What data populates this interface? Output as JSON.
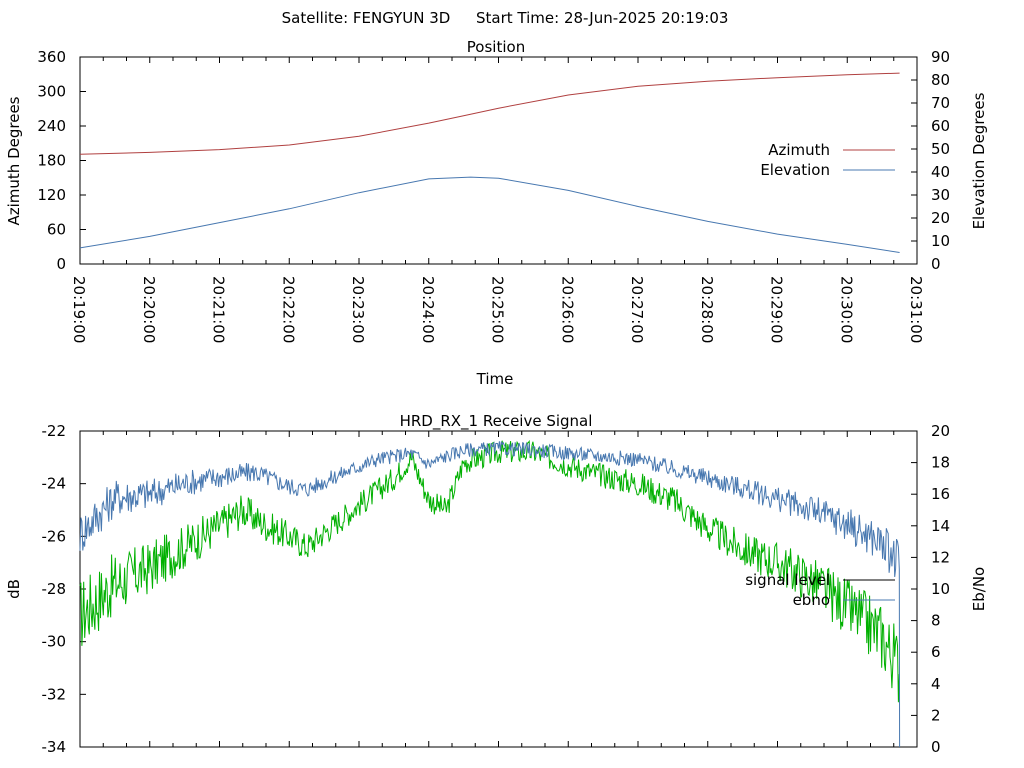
{
  "header": {
    "satellite": "Satellite: FENGYUN 3D",
    "start_time": "Start Time: 28-Jun-2025 20:19:03"
  },
  "chart_data": [
    {
      "type": "line",
      "title": "Position",
      "xlabel": "Time",
      "ylabel": "Azimuth Degrees",
      "y2label": "Elevation Degrees",
      "xticks": [
        "20:19:00",
        "20:20:00",
        "20:21:00",
        "20:22:00",
        "20:23:00",
        "20:24:00",
        "20:25:00",
        "20:26:00",
        "20:27:00",
        "20:28:00",
        "20:29:00",
        "20:30:00",
        "20:31:00"
      ],
      "ylim": [
        0,
        360
      ],
      "yticks": [
        "0",
        "60",
        "120",
        "180",
        "240",
        "300",
        "360"
      ],
      "y2lim": [
        0,
        90
      ],
      "y2ticks": [
        "0",
        "10",
        "20",
        "30",
        "40",
        "50",
        "60",
        "70",
        "80",
        "90"
      ],
      "legend_position": "right",
      "series": [
        {
          "name": "Azimuth",
          "axis": "left",
          "color": "#b04040",
          "x": [
            "20:19:00",
            "20:20:00",
            "20:21:00",
            "20:22:00",
            "20:23:00",
            "20:24:00",
            "20:24:30",
            "20:25:00",
            "20:26:00",
            "20:27:00",
            "20:28:00",
            "20:29:00",
            "20:30:00",
            "20:30:45"
          ],
          "values": [
            191,
            194,
            199,
            207,
            222,
            245,
            258,
            271,
            294,
            309,
            318,
            324,
            329,
            332
          ]
        },
        {
          "name": "Elevation",
          "axis": "right",
          "color": "#4878b0",
          "x": [
            "20:19:00",
            "20:20:00",
            "20:21:00",
            "20:22:00",
            "20:23:00",
            "20:24:00",
            "20:24:36",
            "20:25:00",
            "20:26:00",
            "20:27:00",
            "20:28:00",
            "20:29:00",
            "20:30:00",
            "20:30:45"
          ],
          "values": [
            7,
            12,
            18,
            24,
            31,
            37,
            37.8,
            37.3,
            32,
            25,
            18.5,
            13,
            8.5,
            5
          ]
        }
      ]
    },
    {
      "type": "line",
      "title": "HRD_RX_1 Receive Signal",
      "xlabel": "",
      "ylabel": "dB",
      "y2label": "Eb/No",
      "ylim": [
        -34,
        -22
      ],
      "yticks": [
        "-34",
        "-32",
        "-30",
        "-28",
        "-26",
        "-24",
        "-22"
      ],
      "y2lim": [
        0,
        20
      ],
      "y2ticks": [
        "0",
        "2",
        "4",
        "6",
        "8",
        "10",
        "12",
        "14",
        "16",
        "18",
        "20"
      ],
      "legend_position": "right",
      "series": [
        {
          "name": "signal level",
          "axis": "left",
          "color": "#00b000",
          "x": [
            "20:19:00",
            "20:19:30",
            "20:20:00",
            "20:20:30",
            "20:21:00",
            "20:21:20",
            "20:21:40",
            "20:22:00",
            "20:22:15",
            "20:22:40",
            "20:23:00",
            "20:23:30",
            "20:23:45",
            "20:24:00",
            "20:24:15",
            "20:24:30",
            "20:25:00",
            "20:25:30",
            "20:26:00",
            "20:26:30",
            "20:27:00",
            "20:27:30",
            "20:28:00",
            "20:28:30",
            "20:29:00",
            "20:29:30",
            "20:30:00",
            "20:30:30",
            "20:30:45"
          ],
          "values": [
            -29,
            -27.8,
            -27.2,
            -26.4,
            -25.6,
            -25,
            -25.6,
            -26,
            -26.4,
            -25.5,
            -24.8,
            -23.8,
            -23,
            -24.6,
            -25,
            -23.2,
            -22.8,
            -22.8,
            -23.3,
            -23.7,
            -24,
            -24.6,
            -25.7,
            -26.5,
            -27,
            -27.7,
            -28.7,
            -29.8,
            -31
          ]
        },
        {
          "name": "ebno",
          "axis": "right",
          "color": "#4878b0",
          "x": [
            "20:19:00",
            "20:19:30",
            "20:20:00",
            "20:20:30",
            "20:21:00",
            "20:21:30",
            "20:22:00",
            "20:22:15",
            "20:22:45",
            "20:23:15",
            "20:23:45",
            "20:24:00",
            "20:24:15",
            "20:24:30",
            "20:25:00",
            "20:25:30",
            "20:26:00",
            "20:26:30",
            "20:27:00",
            "20:27:30",
            "20:28:00",
            "20:28:30",
            "20:29:00",
            "20:29:30",
            "20:30:00",
            "20:30:30",
            "20:30:45"
          ],
          "values": [
            13.5,
            15.8,
            16,
            16.7,
            17.1,
            17.4,
            16.5,
            16.3,
            17.3,
            18.2,
            18.6,
            17.9,
            18.4,
            18.8,
            18.9,
            18.8,
            18.6,
            18.4,
            18.2,
            17.6,
            17,
            16.4,
            15.7,
            15,
            14.1,
            12.9,
            11.5
          ]
        }
      ]
    }
  ]
}
